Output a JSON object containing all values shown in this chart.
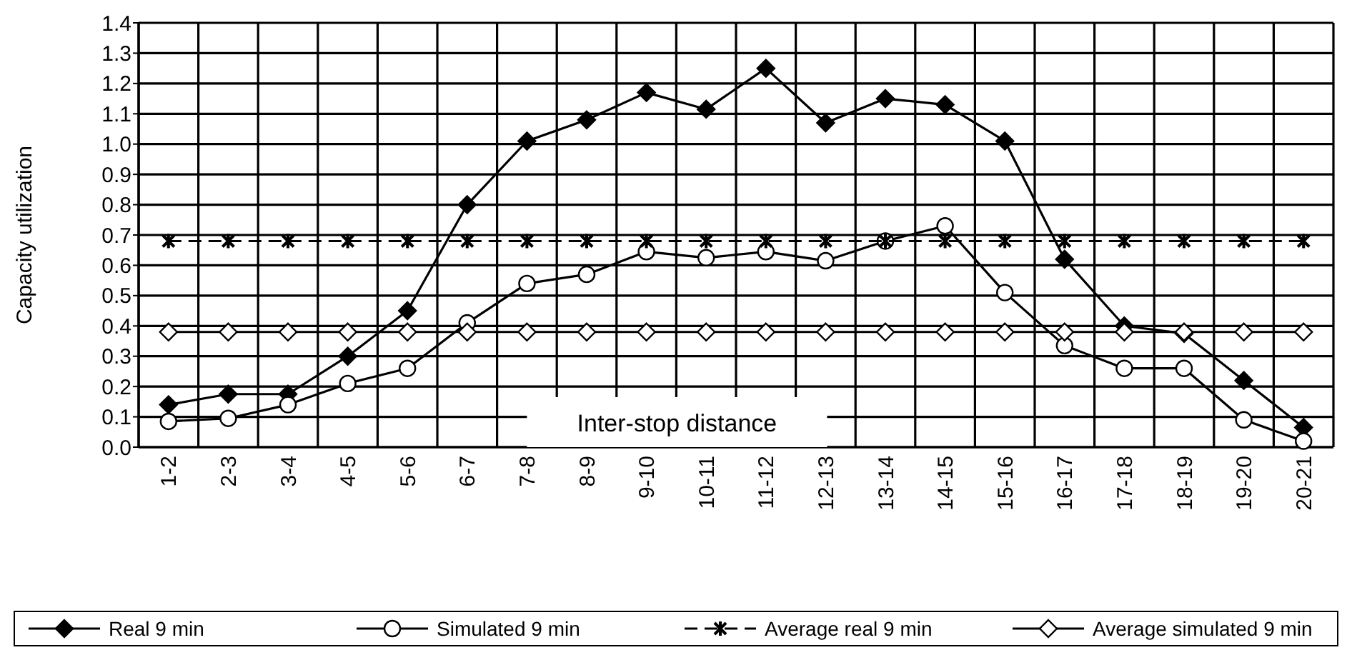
{
  "chart_data": {
    "type": "line",
    "ylabel": "Capacity  utilization",
    "xlabel": "Inter-stop distance",
    "categories": [
      "1-2",
      "2-3",
      "3-4",
      "4-5",
      "5-6",
      "6-7",
      "7-8",
      "8-9",
      "9-10",
      "10-11",
      "11-12",
      "12-13",
      "13-14",
      "14-15",
      "15-16",
      "16-17",
      "17-18",
      "18-19",
      "19-20",
      "20-21"
    ],
    "ylim": [
      0,
      1.4
    ],
    "yticks": [
      {
        "value": 0,
        "label": "0.0"
      },
      0.1,
      0.2,
      0.3,
      0.4,
      0.5,
      0.6,
      0.7,
      0.8,
      0.9,
      {
        "value": 1,
        "label": "1.0"
      },
      1.1,
      1.2,
      1.3,
      1.4
    ],
    "grid": true,
    "legend": "bottom",
    "series": [
      {
        "name": "Real 9 min",
        "color": "#000000",
        "marker": "diamond",
        "line_style": "solid",
        "values": [
          0.14,
          0.175,
          0.175,
          0.3,
          0.45,
          0.8,
          1.01,
          1.08,
          1.17,
          1.115,
          1.25,
          1.07,
          1.15,
          1.13,
          1.01,
          0.62,
          0.4,
          0.375,
          0.22,
          0.065
        ]
      },
      {
        "name": "Simulated 9 min",
        "color": "#000000",
        "marker": "circle",
        "line_style": "solid",
        "values": [
          0.085,
          0.095,
          0.14,
          0.21,
          0.26,
          0.41,
          0.54,
          0.57,
          0.645,
          0.625,
          0.645,
          0.615,
          0.68,
          0.73,
          0.51,
          0.335,
          0.26,
          0.26,
          0.09,
          0.02
        ]
      },
      {
        "name": "Average real 9 min",
        "color": "#000000",
        "marker": "cross",
        "line_style": "dashed",
        "values": [
          0.68,
          0.68,
          0.68,
          0.68,
          0.68,
          0.68,
          0.68,
          0.68,
          0.68,
          0.68,
          0.68,
          0.68,
          0.68,
          0.68,
          0.68,
          0.68,
          0.68,
          0.68,
          0.68,
          0.68
        ]
      },
      {
        "name": "Average simulated 9 min",
        "color": "#000000",
        "marker": "diamond",
        "line_style": "solid",
        "values": [
          0.38,
          0.38,
          0.38,
          0.38,
          0.38,
          0.38,
          0.38,
          0.38,
          0.38,
          0.38,
          0.38,
          0.38,
          0.38,
          0.38,
          0.38,
          0.38,
          0.38,
          0.38,
          0.38,
          0.38
        ]
      }
    ]
  }
}
